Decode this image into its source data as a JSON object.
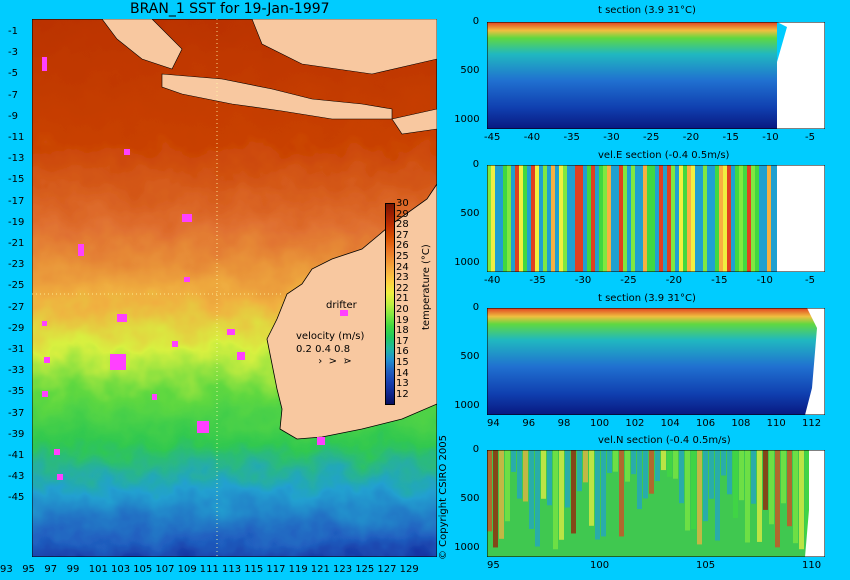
{
  "map": {
    "title": "BRAN_1 SST for 19-Jan-1997",
    "lat_labels": [
      "-1",
      "-3",
      "-5",
      "-7",
      "-9",
      "-11",
      "-13",
      "-15",
      "-17",
      "-19",
      "-21",
      "-23",
      "-25",
      "-27",
      "-29",
      "-31",
      "-33",
      "-35",
      "-37",
      "-39",
      "-41",
      "-43",
      "-45"
    ],
    "lon_labels": [
      "93",
      "95",
      "97",
      "99",
      "101",
      "103",
      "105",
      "107",
      "109",
      "111",
      "113",
      "115",
      "117",
      "119",
      "121",
      "123",
      "125",
      "127",
      "129"
    ],
    "legend": {
      "drifter_label": "drifter",
      "velocity_label": "velocity (m/s)",
      "velocity_scale": "0.2 0.4 0.8"
    },
    "colorbar": {
      "label": "temperature (°C)",
      "ticks": [
        "30",
        "29",
        "28",
        "27",
        "26",
        "25",
        "24",
        "23",
        "22",
        "21",
        "20",
        "19",
        "18",
        "17",
        "16",
        "15",
        "14",
        "13",
        "12"
      ],
      "colors": [
        "#7a1500",
        "#a02000",
        "#c03000",
        "#d85000",
        "#e87020",
        "#f09030",
        "#f8b040",
        "#ffd040",
        "#f0f040",
        "#c0f040",
        "#80e840",
        "#40d840",
        "#20c860",
        "#20b8a0",
        "#2090d0",
        "#2060c0",
        "#1840b0",
        "#102890",
        "#081060"
      ]
    },
    "copyright": "© Copyright CSIRO 2005"
  },
  "sections": [
    {
      "title": "t section (3.9      31°C)",
      "y_ticks": [
        "0",
        "500",
        "1000"
      ],
      "x_ticks": [
        "-45",
        "-40",
        "-35",
        "-30",
        "-25",
        "-20",
        "-15",
        "-10",
        "-5"
      ]
    },
    {
      "title": "vel.E section (-0.4      0.5m/s)",
      "y_ticks": [
        "0",
        "500",
        "1000"
      ],
      "x_ticks": [
        "-40",
        "-35",
        "-30",
        "-25",
        "-20",
        "-15",
        "-10",
        "-5"
      ]
    },
    {
      "title": "t section (3.9      31°C)",
      "y_ticks": [
        "0",
        "500",
        "1000"
      ],
      "x_ticks": [
        "94",
        "96",
        "98",
        "100",
        "102",
        "104",
        "106",
        "108",
        "110",
        "112"
      ]
    },
    {
      "title": "vel.N section (-0.4      0.5m/s)",
      "y_ticks": [
        "0",
        "500",
        "1000"
      ],
      "x_ticks": [
        "95",
        "100",
        "105",
        "110"
      ]
    }
  ]
}
